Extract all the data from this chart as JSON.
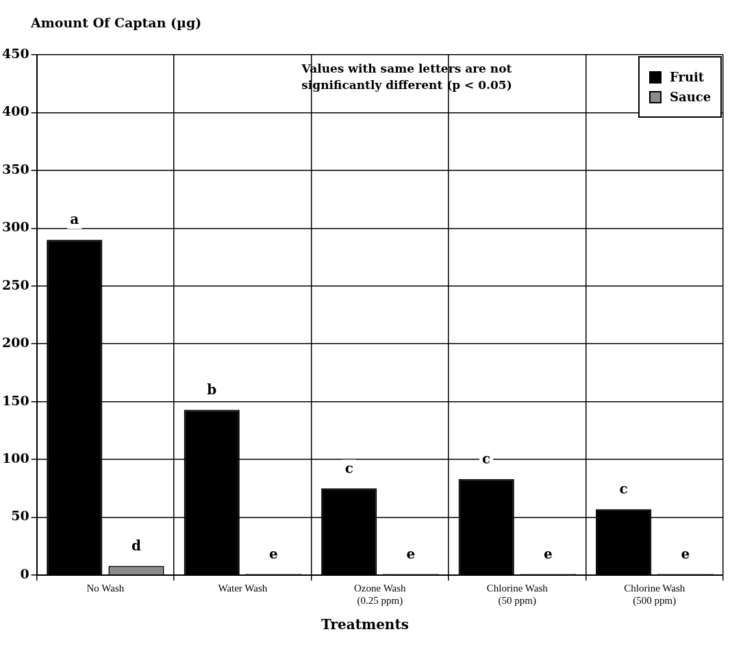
{
  "chart_data": {
    "type": "bar",
    "ylabel": "Amount Of Captan (µg)",
    "xlabel": "Treatments",
    "categories": [
      "No Wash",
      "Water Wash",
      "Ozone Wash\n(0.25 ppm)",
      "Chlorine Wash\n(50 ppm)",
      "Chlorine Wash\n(500 ppm)"
    ],
    "series": [
      {
        "name": "Fruit",
        "color": "#000000",
        "values": [
          290,
          143,
          75,
          83,
          57
        ],
        "value_labels": [
          "a",
          "b",
          "c",
          "c",
          "c"
        ]
      },
      {
        "name": "Sauce",
        "color": "#8c8c8c",
        "values": [
          8,
          1,
          1,
          1,
          1
        ],
        "value_labels": [
          "d",
          "e",
          "e",
          "e",
          "e"
        ]
      }
    ],
    "ylim": [
      0,
      450
    ],
    "yticks": [
      0,
      50,
      100,
      150,
      200,
      250,
      300,
      350,
      400,
      450
    ],
    "grid": true,
    "legend": "top right",
    "annotations": [
      "Values with same letters are not significantly different (p < 0.05)"
    ]
  }
}
